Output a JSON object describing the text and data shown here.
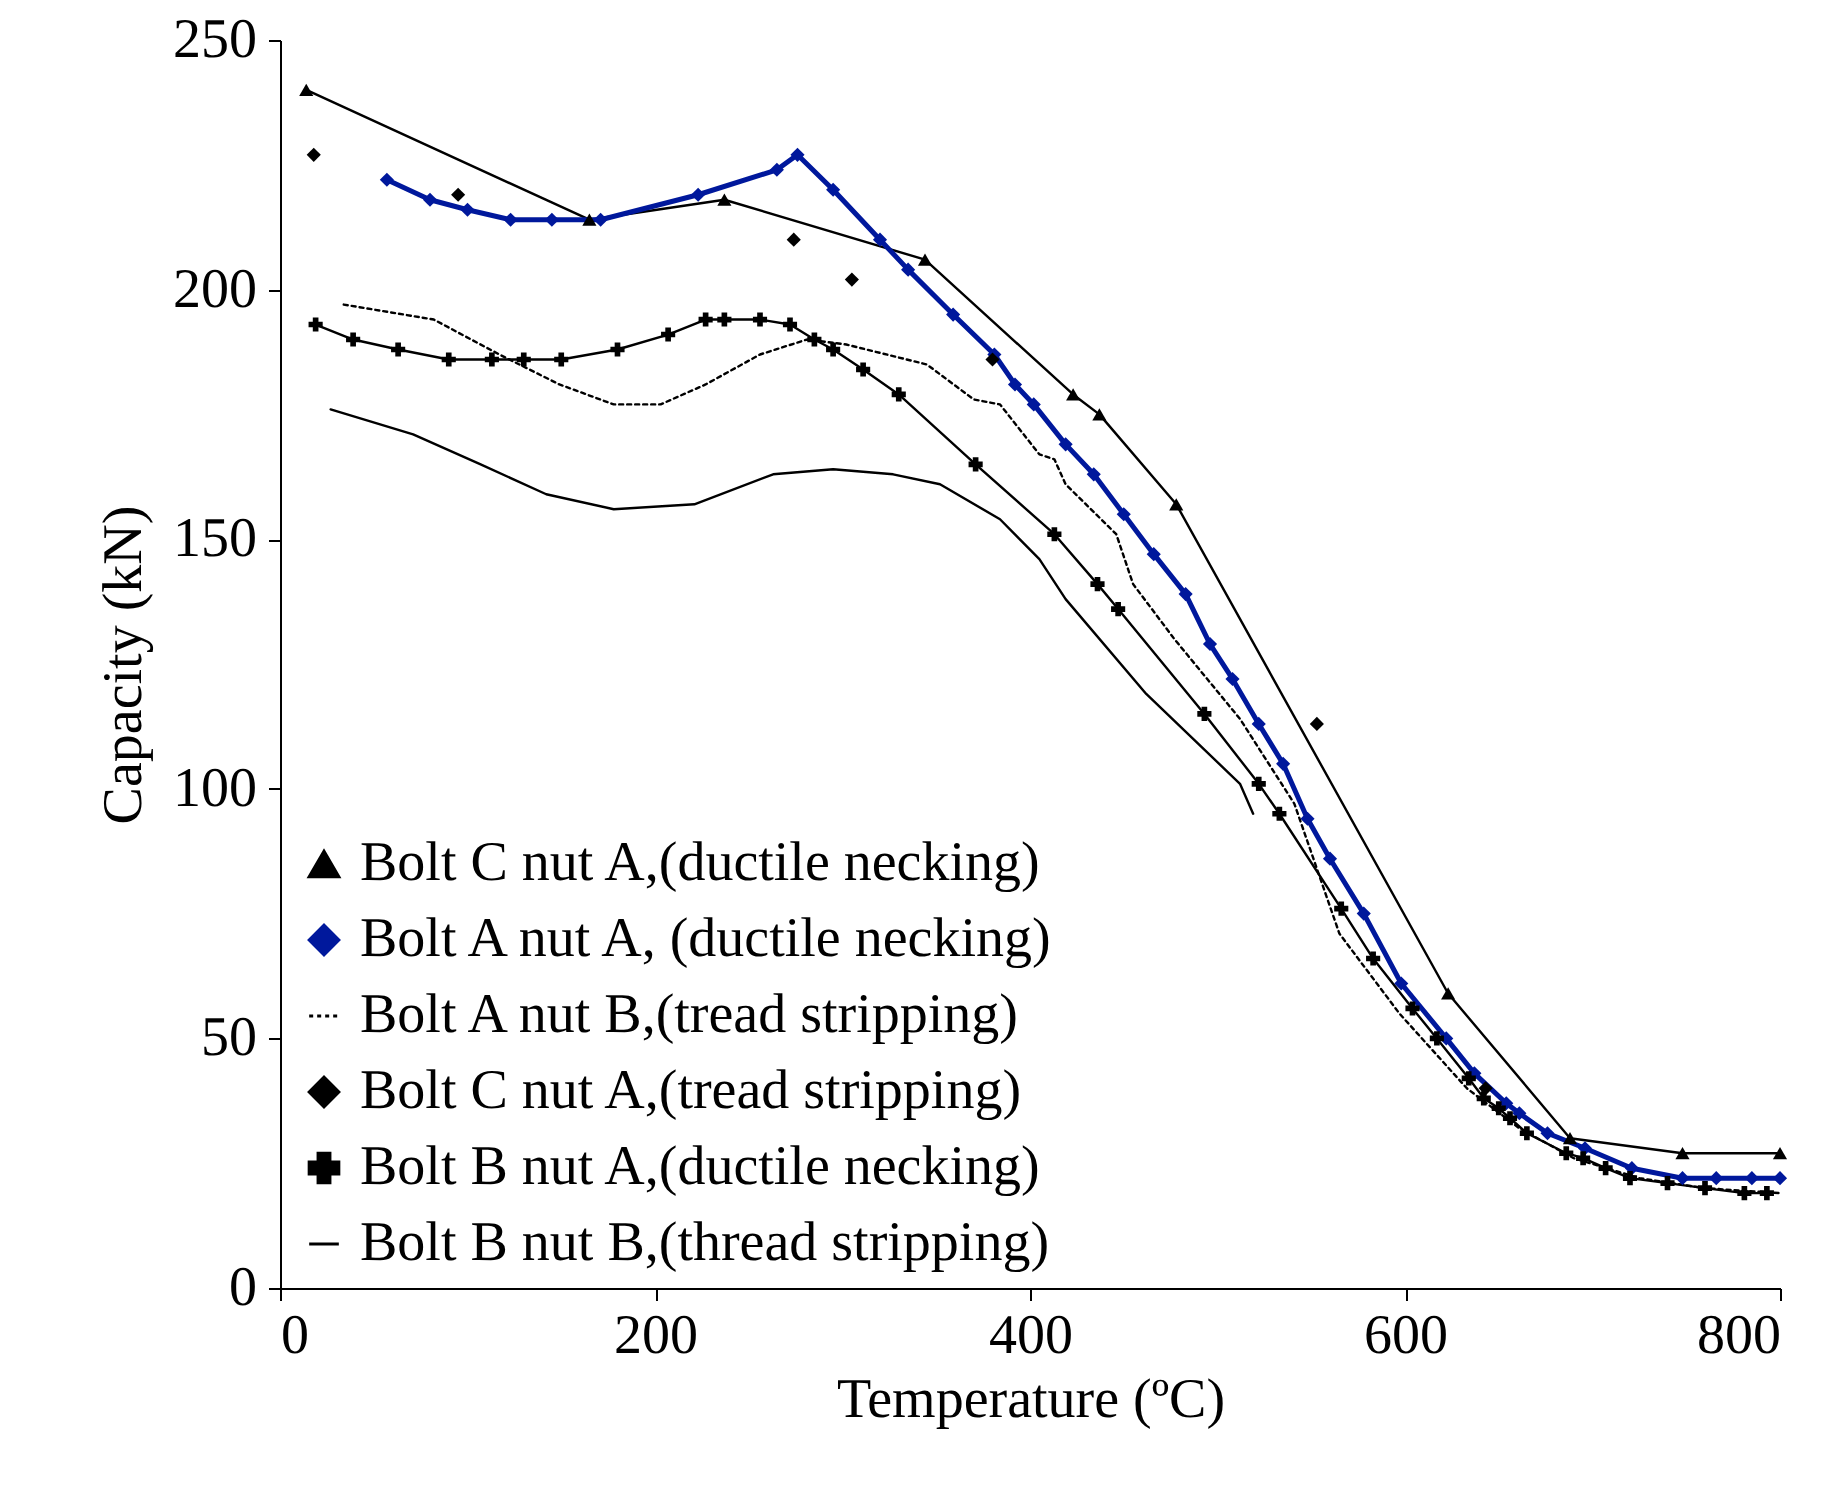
{
  "chart_data": {
    "type": "line",
    "xlabel": "Temperature (ºC)",
    "ylabel": "Capacity (kN)",
    "xlim": [
      0,
      800
    ],
    "ylim": [
      0,
      250
    ],
    "xticks": [
      0,
      200,
      400,
      600,
      800
    ],
    "yticks": [
      0,
      50,
      100,
      150,
      200,
      250
    ],
    "grid": false,
    "legend": "bottom left",
    "series": [
      {
        "name": "Bolt C nut A,(ductile necking)",
        "color": "#000000",
        "marker": "triangle",
        "line_style": "solid",
        "x": [
          14,
          165,
          237,
          344,
          423,
          437,
          478,
          623,
          688,
          748,
          800
        ],
        "values": [
          240,
          214,
          218,
          206,
          179,
          175,
          157,
          59,
          30,
          27,
          27
        ]
      },
      {
        "name": "Bolt A nut A, (ductile necking)",
        "color": "#00189c",
        "marker": "diamond",
        "line_style": "solid",
        "x": [
          57,
          80,
          100,
          123,
          145,
          171,
          223,
          265,
          276,
          295,
          320,
          335,
          359,
          381,
          392,
          402,
          419,
          434,
          450,
          466,
          483,
          496,
          508,
          522,
          535,
          548,
          560,
          578,
          598,
          622,
          637,
          654,
          661,
          676,
          696,
          721,
          748,
          766,
          785,
          800
        ],
        "values": [
          222,
          218,
          216,
          214,
          214,
          214,
          219,
          224,
          227,
          220,
          210,
          204,
          195,
          187,
          181,
          177,
          169,
          163,
          155,
          147,
          139,
          129,
          122,
          113,
          105,
          94,
          86,
          75,
          61,
          50,
          43,
          37,
          35,
          31,
          28,
          24,
          22,
          22,
          22,
          22
        ]
      },
      {
        "name": "Bolt A nut B,(tread stripping)",
        "color": "#000000",
        "line_style": "dotted",
        "x": [
          34,
          82,
          117,
          149,
          178,
          203,
          227,
          256,
          281,
          302,
          345,
          370,
          384,
          405,
          413,
          419,
          446,
          455,
          477,
          512,
          541,
          565,
          597,
          633,
          661,
          690,
          725,
          760,
          800
        ],
        "values": [
          197,
          194,
          187,
          181,
          177,
          177,
          181,
          187,
          190,
          189,
          185,
          178,
          177,
          167,
          166,
          161,
          151,
          141,
          130,
          114,
          97,
          71,
          55,
          40,
          32,
          26,
          22,
          20,
          19
        ]
      },
      {
        "name": "Bolt C nut A,(tread stripping)",
        "type": "scatter",
        "color": "#000000",
        "marker": "diamond",
        "x": [
          18,
          95,
          274,
          305,
          380,
          553,
          643
        ],
        "values": [
          227,
          219,
          210,
          202,
          186,
          113,
          40
        ]
      },
      {
        "name": "Bolt B nut A,(ductile necking)",
        "color": "#000000",
        "marker": "cross",
        "line_style": "solid",
        "x": [
          19,
          39,
          63,
          90,
          113,
          130,
          150,
          180,
          207,
          227,
          237,
          256,
          272,
          285,
          295,
          311,
          330,
          371,
          413,
          436,
          447,
          493,
          522,
          533,
          566,
          583,
          604,
          617,
          634,
          642,
          650,
          656,
          665,
          686,
          695,
          707,
          720,
          740,
          760,
          781,
          793
        ],
        "values": [
          193,
          190,
          188,
          186,
          186,
          186,
          186,
          188,
          191,
          194,
          194,
          194,
          193,
          190,
          188,
          184,
          179,
          165,
          151,
          141,
          136,
          115,
          101,
          95,
          76,
          66,
          56,
          50,
          42,
          38,
          36,
          34,
          31,
          27,
          26,
          24,
          22,
          21,
          20,
          19,
          19
        ]
      },
      {
        "name": "Bolt B nut B,(thread stripping)",
        "color": "#000000",
        "line_style": "solid",
        "x": [
          27,
          71,
          107,
          142,
          178,
          221,
          263,
          295,
          327,
          352,
          384,
          405,
          419,
          462,
          512,
          519
        ],
        "values": [
          176,
          171,
          165,
          159,
          156,
          157,
          163,
          164,
          163,
          161,
          154,
          146,
          138,
          119,
          101,
          95
        ]
      }
    ]
  }
}
